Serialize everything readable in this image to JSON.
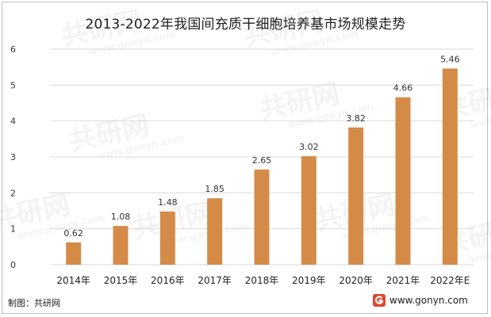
{
  "chart_data": {
    "type": "bar",
    "title": "2013-2022年我国间充质干细胞培养基市场规模走势",
    "categories": [
      "2014年",
      "2015年",
      "2016年",
      "2017年",
      "2018年",
      "2019年",
      "2020年",
      "2021年",
      "2022年E"
    ],
    "values": [
      0.62,
      1.08,
      1.48,
      1.85,
      2.65,
      3.02,
      3.82,
      4.66,
      5.46
    ],
    "value_labels": [
      "0.62",
      "1.08",
      "1.48",
      "1.85",
      "2.65",
      "3.02",
      "3.82",
      "4.66",
      "5.46"
    ],
    "yticks": [
      "0",
      "1",
      "2",
      "3",
      "4",
      "5",
      "6"
    ],
    "ylim": [
      0,
      6
    ],
    "xlabel": "",
    "ylabel": "",
    "grid": true,
    "bar_color": "#D58B48"
  },
  "footer": {
    "source": "制图：共研网",
    "website": "www.gonyn.com"
  },
  "watermark": {
    "brand": "共研网",
    "url": "www.gonyn.com"
  }
}
